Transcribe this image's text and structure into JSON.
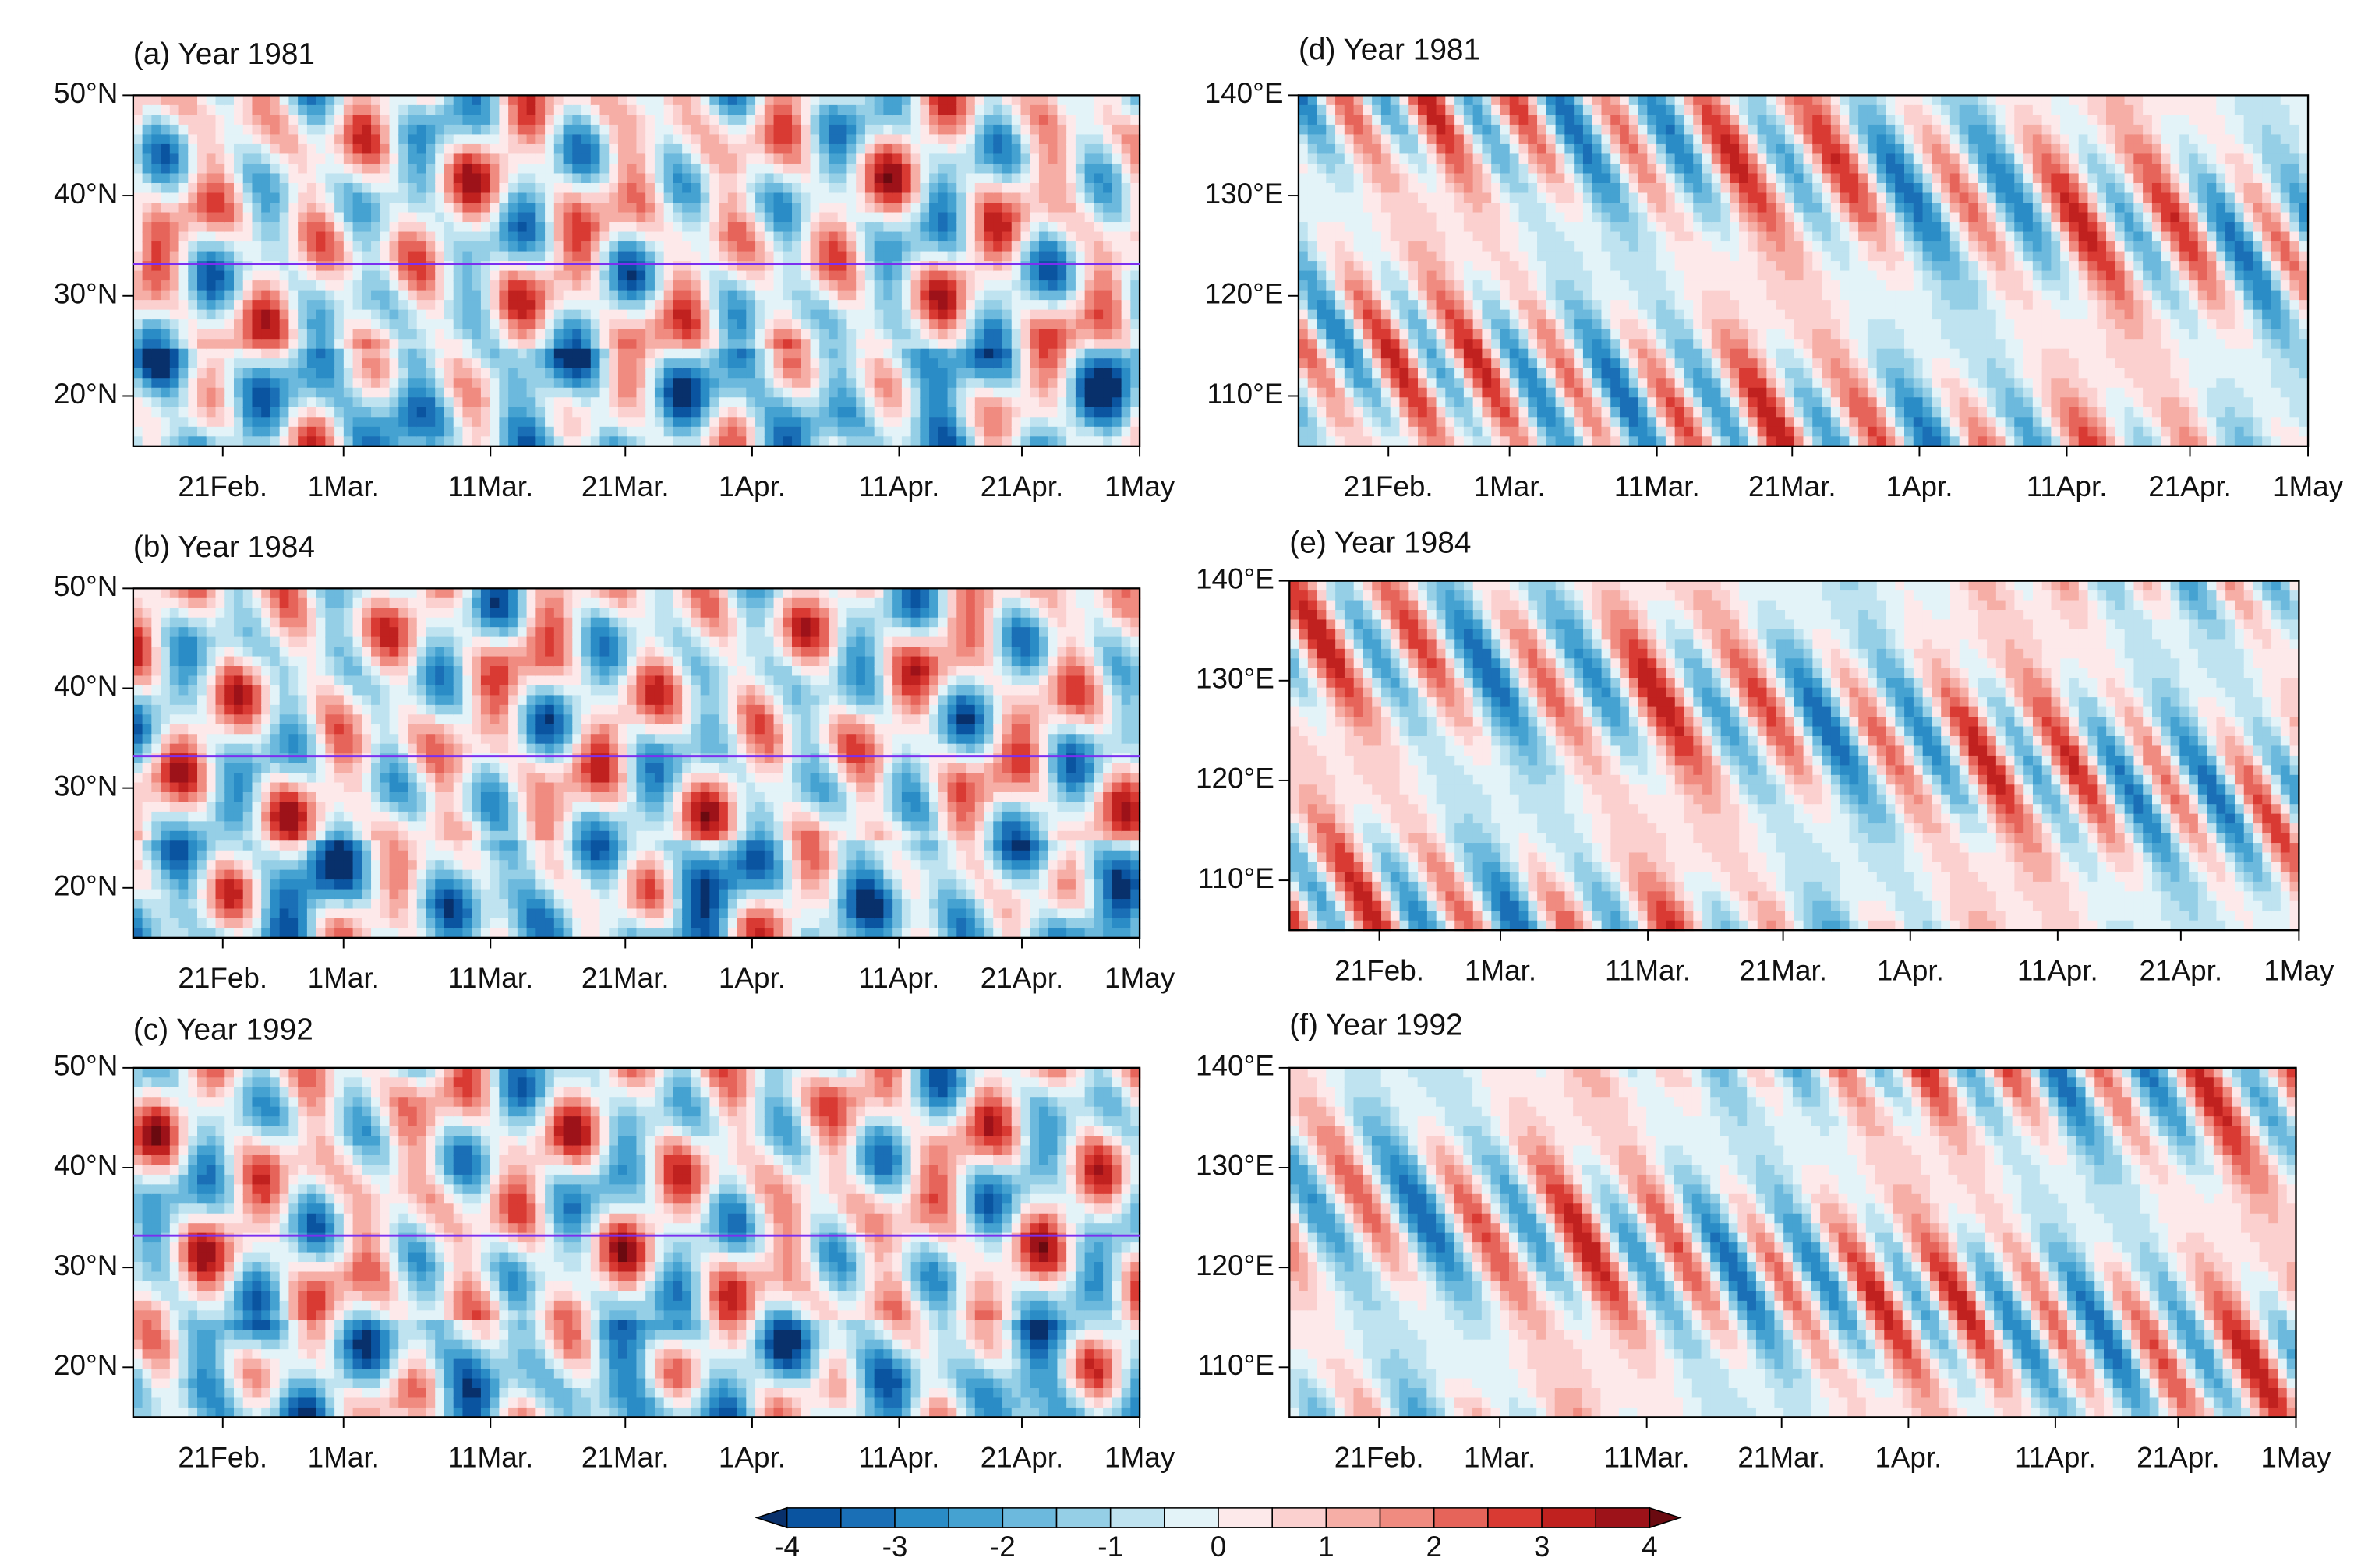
{
  "panels": [
    {
      "title": "(a) Year 1981",
      "ylim": [
        15,
        50
      ],
      "yticks": [
        {
          "value": 20,
          "label": "20°N"
        },
        {
          "value": 30,
          "label": "30°N"
        },
        {
          "value": 40,
          "label": "40°N"
        },
        {
          "value": 50,
          "label": "50°N"
        }
      ],
      "xticks": [
        "21Feb.",
        "1Mar.",
        "11Mar.",
        "21Mar.",
        "1Apr.",
        "11Apr.",
        "21Apr.",
        "1May"
      ],
      "hline": 33.2
    },
    {
      "title": "(b) Year 1984",
      "ylim": [
        15,
        50
      ],
      "yticks": [
        {
          "value": 20,
          "label": "20°N"
        },
        {
          "value": 30,
          "label": "30°N"
        },
        {
          "value": 40,
          "label": "40°N"
        },
        {
          "value": 50,
          "label": "50°N"
        }
      ],
      "xticks": [
        "21Feb.",
        "1Mar.",
        "11Mar.",
        "21Mar.",
        "1Apr.",
        "11Apr.",
        "21Apr.",
        "1May"
      ],
      "hline": 33.2
    },
    {
      "title": "(c) Year 1992",
      "ylim": [
        15,
        50
      ],
      "yticks": [
        {
          "value": 20,
          "label": "20°N"
        },
        {
          "value": 30,
          "label": "30°N"
        },
        {
          "value": 40,
          "label": "40°N"
        },
        {
          "value": 50,
          "label": "50°N"
        }
      ],
      "xticks": [
        "21Feb.",
        "1Mar.",
        "11Mar.",
        "21Mar.",
        "1Apr.",
        "11Apr.",
        "21Apr.",
        "1May"
      ],
      "hline": 33.2
    },
    {
      "title": "(d) Year 1981",
      "ylim": [
        105,
        140
      ],
      "yticks": [
        {
          "value": 110,
          "label": "110°E"
        },
        {
          "value": 120,
          "label": "120°E"
        },
        {
          "value": 130,
          "label": "130°E"
        },
        {
          "value": 140,
          "label": "140°E"
        }
      ],
      "xticks": [
        "21Feb.",
        "1Mar.",
        "11Mar.",
        "21Mar.",
        "1Apr.",
        "11Apr.",
        "21Apr.",
        "1May"
      ]
    },
    {
      "title": "(e) Year 1984",
      "ylim": [
        105,
        140
      ],
      "yticks": [
        {
          "value": 110,
          "label": "110°E"
        },
        {
          "value": 120,
          "label": "120°E"
        },
        {
          "value": 130,
          "label": "130°E"
        },
        {
          "value": 140,
          "label": "140°E"
        }
      ],
      "xticks": [
        "21Feb.",
        "1Mar.",
        "11Mar.",
        "21Mar.",
        "1Apr.",
        "11Apr.",
        "21Apr.",
        "1May"
      ]
    },
    {
      "title": "(f) Year 1992",
      "ylim": [
        105,
        140
      ],
      "yticks": [
        {
          "value": 110,
          "label": "110°E"
        },
        {
          "value": 120,
          "label": "120°E"
        },
        {
          "value": 130,
          "label": "130°E"
        },
        {
          "value": 140,
          "label": "140°E"
        }
      ],
      "xticks": [
        "21Feb.",
        "1Mar.",
        "11Mar.",
        "21Mar.",
        "1Apr.",
        "11Apr.",
        "21Apr.",
        "1May"
      ]
    }
  ],
  "colorbar": {
    "levels": [
      -4,
      -3.5,
      -3,
      -2.5,
      -2,
      -1.5,
      -1,
      -0.5,
      0,
      0.5,
      1,
      1.5,
      2,
      2.5,
      3,
      3.5,
      4
    ],
    "ticks": [
      -4,
      -3,
      -2,
      -1,
      0,
      1,
      2,
      3,
      4
    ],
    "colors": [
      "#08306b",
      "#0a54a0",
      "#1a6fb6",
      "#2a8cc6",
      "#45a2d1",
      "#6cb9dd",
      "#95cfe6",
      "#bfe3f0",
      "#e3f3f8",
      "#fde9ea",
      "#fbd0cf",
      "#f6aea6",
      "#f08b80",
      "#e6645a",
      "#d93a33",
      "#c0211f",
      "#9d1219",
      "#6a0a10"
    ]
  }
}
